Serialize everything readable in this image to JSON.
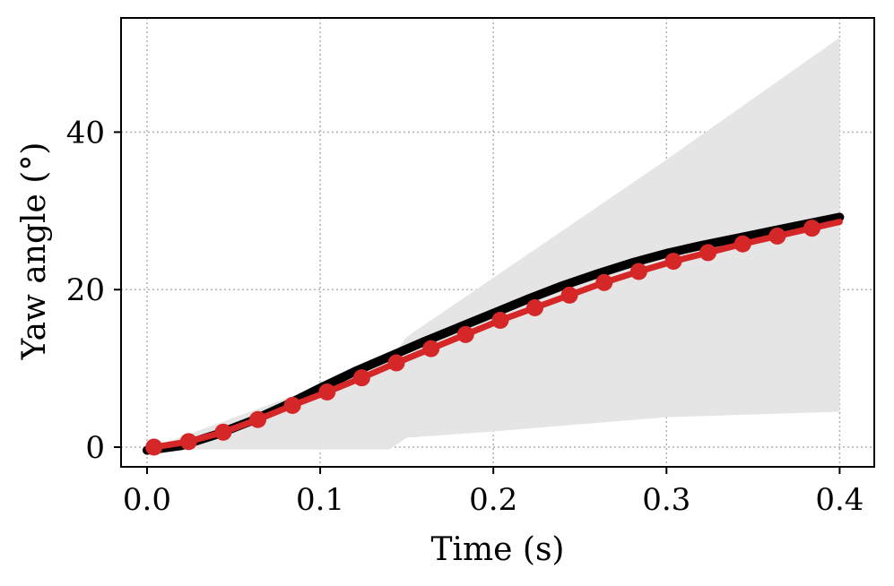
{
  "chart_data": {
    "type": "line",
    "title": "",
    "xlabel": "Time (s)",
    "ylabel": "Yaw angle (°)",
    "xlim": [
      -0.015,
      0.42
    ],
    "ylim": [
      -2.5,
      54.5
    ],
    "xticks": [
      0.0,
      0.1,
      0.2,
      0.3,
      0.4
    ],
    "xtick_labels": [
      "0.0",
      "0.1",
      "0.2",
      "0.3",
      "0.4"
    ],
    "yticks": [
      0,
      20,
      40
    ],
    "ytick_labels": [
      "0",
      "20",
      "40"
    ],
    "grid": true,
    "band": {
      "x": [
        0.0,
        0.14,
        0.15,
        0.2,
        0.3,
        0.4
      ],
      "lower": [
        -0.3,
        -0.3,
        1.2,
        2.0,
        3.8,
        4.5
      ],
      "upper": [
        -0.3,
        11.0,
        14.0,
        21.5,
        36.5,
        52.0
      ],
      "color": "#e5e5e5"
    },
    "series": [
      {
        "color": "#000000",
        "x": [
          0.0,
          0.02,
          0.04,
          0.06,
          0.08,
          0.1,
          0.12,
          0.14,
          0.16,
          0.18,
          0.2,
          0.22,
          0.24,
          0.26,
          0.28,
          0.3,
          0.32,
          0.34,
          0.36,
          0.38,
          0.4
        ],
        "values": [
          -0.4,
          0.2,
          1.6,
          3.3,
          5.3,
          7.5,
          9.6,
          11.5,
          13.4,
          15.2,
          17.0,
          18.8,
          20.5,
          22.0,
          23.4,
          24.6,
          25.6,
          26.5,
          27.4,
          28.3,
          29.2
        ]
      },
      {
        "color": "#d62728",
        "markers": true,
        "x": [
          0.004,
          0.024,
          0.044,
          0.064,
          0.084,
          0.104,
          0.124,
          0.144,
          0.164,
          0.184,
          0.204,
          0.224,
          0.244,
          0.264,
          0.284,
          0.304,
          0.324,
          0.344,
          0.364,
          0.384,
          0.4
        ],
        "values": [
          0.0,
          0.7,
          1.9,
          3.5,
          5.3,
          7.0,
          8.8,
          10.7,
          12.5,
          14.3,
          16.1,
          17.7,
          19.3,
          20.9,
          22.3,
          23.6,
          24.7,
          25.8,
          26.8,
          27.8,
          28.6
        ]
      }
    ]
  }
}
